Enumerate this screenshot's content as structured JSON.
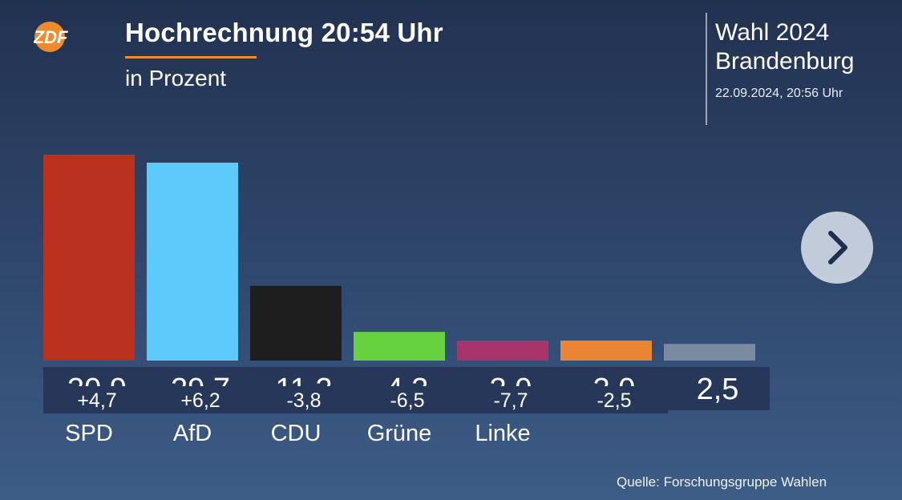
{
  "broadcaster": {
    "logo_text": "ZDF",
    "logo_color": "#f08a2c"
  },
  "header": {
    "title": "Hochrechnung 20:54 Uhr",
    "subtitle": "in Prozent"
  },
  "election": {
    "name": "Wahl 2024",
    "region": "Brandenburg",
    "timestamp": "22.09.2024, 20:56 Uhr"
  },
  "navigation": {
    "next_icon": "chevron-right-icon"
  },
  "source": "Quelle: Forschungsgruppe Wahlen",
  "chart_data": {
    "type": "bar",
    "categories": [
      "SPD",
      "AfD",
      "CDU",
      "Grüne",
      "Linke",
      "",
      ""
    ],
    "values": [
      30.9,
      29.7,
      11.2,
      4.3,
      3.0,
      3.0,
      2.5
    ],
    "value_labels": [
      "30,9",
      "29,7",
      "11,2",
      "4,3",
      "3,0",
      "3,0",
      "2,5"
    ],
    "diffs": [
      "+4,7",
      "+6,2",
      "-3,8",
      "-6,5",
      "-7,7",
      "-2,5"
    ],
    "colors": [
      "#b9301d",
      "#5dcbfa",
      "#1e1e1e",
      "#66d23f",
      "#a8356a",
      "#ea8534",
      "#7a8aa0"
    ],
    "ylim": [
      0,
      31.5
    ]
  }
}
